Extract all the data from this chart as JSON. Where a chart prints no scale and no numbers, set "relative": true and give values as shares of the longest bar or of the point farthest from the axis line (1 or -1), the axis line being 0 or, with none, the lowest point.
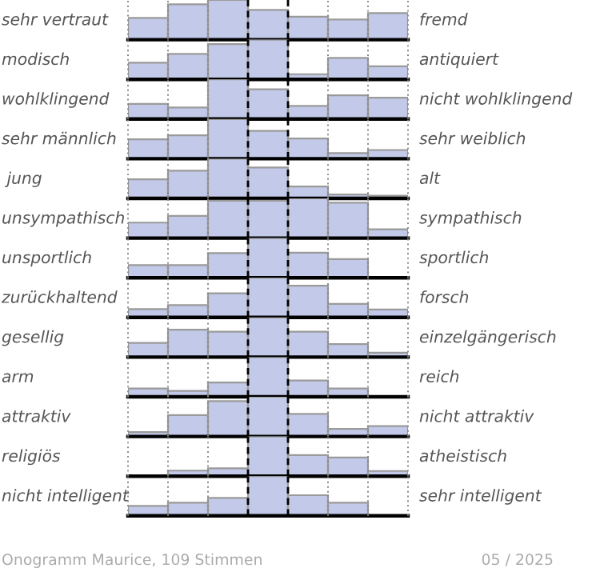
{
  "chart_data": [
    {
      "type": "bar",
      "relative": true,
      "categories": [
        null,
        null,
        null,
        null,
        null,
        null,
        null
      ],
      "ylabel": "sehr vertraut",
      "y2label": "fremd",
      "color": "#c3c9e8",
      "grid": "x",
      "values": [
        0.55,
        0.89,
        1,
        0.75,
        0.58,
        0.51,
        0.67
      ]
    },
    {
      "type": "bar",
      "relative": true,
      "categories": [
        null,
        null,
        null,
        null,
        null,
        null,
        null
      ],
      "ylabel": "modisch",
      "y2label": "antiquiert",
      "color": "#c3c9e8",
      "grid": "x",
      "values": [
        0.42,
        0.64,
        0.89,
        1,
        0.13,
        0.54,
        0.33
      ]
    },
    {
      "type": "bar",
      "relative": true,
      "categories": [
        null,
        null,
        null,
        null,
        null,
        null,
        null
      ],
      "ylabel": "wohlklingend",
      "y2label": "nicht wohlklingend",
      "color": "#c3c9e8",
      "grid": "x",
      "values": [
        0.38,
        0.29,
        1,
        0.75,
        0.33,
        0.6,
        0.54
      ]
    },
    {
      "type": "bar",
      "relative": true,
      "categories": [
        null,
        null,
        null,
        null,
        null,
        null,
        null
      ],
      "ylabel": "sehr männlich",
      "y2label": "sehr weiblich",
      "color": "#c3c9e8",
      "grid": "x",
      "values": [
        0.49,
        0.59,
        1,
        0.7,
        0.51,
        0.14,
        0.22
      ]
    },
    {
      "type": "bar",
      "relative": true,
      "categories": [
        null,
        null,
        null,
        null,
        null,
        null,
        null
      ],
      "ylabel": " jung",
      "y2label": "alt",
      "color": "#c3c9e8",
      "grid": "x",
      "values": [
        0.48,
        0.7,
        1,
        0.78,
        0.3,
        0.1,
        0.07
      ]
    },
    {
      "type": "bar",
      "relative": true,
      "categories": [
        null,
        null,
        null,
        null,
        null,
        null,
        null
      ],
      "ylabel": "unsympathisch",
      "y2label": "sympathisch",
      "color": "#c3c9e8",
      "grid": "x",
      "values": [
        0.39,
        0.56,
        0.94,
        0.94,
        1,
        0.89,
        0.22
      ]
    },
    {
      "type": "bar",
      "relative": true,
      "categories": [
        null,
        null,
        null,
        null,
        null,
        null,
        null
      ],
      "ylabel": "unsportlich",
      "y2label": "sportlich",
      "color": "#c3c9e8",
      "grid": "x",
      "values": [
        0.32,
        0.32,
        0.62,
        1,
        0.63,
        0.47,
        0
      ]
    },
    {
      "type": "bar",
      "relative": true,
      "categories": [
        null,
        null,
        null,
        null,
        null,
        null,
        null
      ],
      "ylabel": "zurückhaltend",
      "y2label": "forsch",
      "color": "#c3c9e8",
      "grid": "x",
      "values": [
        0.21,
        0.31,
        0.61,
        1,
        0.8,
        0.34,
        0.2
      ]
    },
    {
      "type": "bar",
      "relative": true,
      "categories": [
        null,
        null,
        null,
        null,
        null,
        null,
        null
      ],
      "ylabel": "gesellig",
      "y2label": "einzelgängerisch",
      "color": "#c3c9e8",
      "grid": "x",
      "values": [
        0.36,
        0.69,
        0.64,
        1,
        0.64,
        0.33,
        0.11
      ]
    },
    {
      "type": "bar",
      "relative": true,
      "categories": [
        null,
        null,
        null,
        null,
        null,
        null,
        null
      ],
      "ylabel": "arm",
      "y2label": "reich",
      "color": "#c3c9e8",
      "grid": "x",
      "values": [
        0.21,
        0.15,
        0.36,
        1,
        0.41,
        0.21,
        0
      ]
    },
    {
      "type": "bar",
      "relative": true,
      "categories": [
        null,
        null,
        null,
        null,
        null,
        null,
        null
      ],
      "ylabel": "attraktiv",
      "y2label": "nicht attraktiv",
      "color": "#c3c9e8",
      "grid": "x",
      "values": [
        0.11,
        0.54,
        0.89,
        1,
        0.57,
        0.19,
        0.26
      ]
    },
    {
      "type": "bar",
      "relative": true,
      "categories": [
        null,
        null,
        null,
        null,
        null,
        null,
        null
      ],
      "ylabel": "religiös",
      "y2label": "atheistisch",
      "color": "#c3c9e8",
      "grid": "x",
      "values": [
        0,
        0.14,
        0.2,
        1,
        0.53,
        0.47,
        0.13
      ]
    },
    {
      "type": "bar",
      "relative": true,
      "categories": [
        null,
        null,
        null,
        null,
        null,
        null,
        null
      ],
      "ylabel": "nicht intelligent",
      "y2label": "sehr intelligent",
      "color": "#c3c9e8",
      "grid": "x",
      "values": [
        0.25,
        0.33,
        0.45,
        1,
        0.52,
        0.33,
        0
      ],
      "annotations": [
        "Onogramm Maurice, 109 Stimmen",
        "05 / 2025"
      ]
    }
  ]
}
